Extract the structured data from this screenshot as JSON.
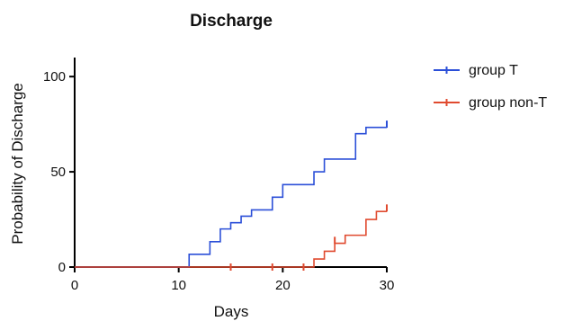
{
  "chart_data": {
    "type": "line",
    "title": "Discharge",
    "xlabel": "Days",
    "ylabel": "Probability of Discharge",
    "xlim": [
      0,
      30
    ],
    "ylim": [
      0,
      110
    ],
    "xticks": [
      0,
      10,
      20,
      30
    ],
    "yticks": [
      0,
      50,
      100
    ],
    "grid": false,
    "legend_position": "top-right",
    "step": true,
    "series": [
      {
        "name": "group T",
        "color": "#2b4fd8",
        "x": [
          0,
          11,
          13,
          14,
          15,
          16,
          17,
          19,
          20,
          23,
          24,
          27,
          28,
          30
        ],
        "y": [
          0,
          6.7,
          13.3,
          20,
          23.3,
          26.7,
          30,
          36.7,
          43.3,
          50,
          56.7,
          70,
          73.3,
          73.3
        ],
        "censored": [
          [
            30,
            75
          ]
        ]
      },
      {
        "name": "group non-T",
        "color": "#e04a2f",
        "x": [
          0,
          23,
          24,
          25,
          26,
          27,
          28,
          29,
          30
        ],
        "y": [
          0,
          4.2,
          8.3,
          12.5,
          16.7,
          16.7,
          25,
          29.2,
          29.2
        ],
        "censored": [
          [
            15,
            0
          ],
          [
            19,
            0
          ],
          [
            22,
            0
          ],
          [
            25,
            14
          ],
          [
            30,
            31
          ]
        ]
      }
    ]
  }
}
